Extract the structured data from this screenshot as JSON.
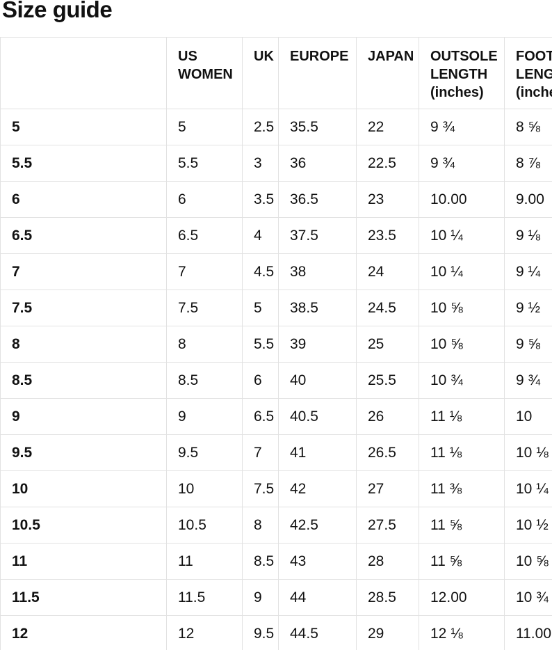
{
  "page": {
    "title": "Size guide"
  },
  "colors": {
    "text": "#111111",
    "border": "#e2e2e2",
    "background": "#ffffff"
  },
  "table": {
    "columns": [
      {
        "key": "size",
        "label": ""
      },
      {
        "key": "us_women",
        "label": "US WOMEN"
      },
      {
        "key": "uk",
        "label": "UK"
      },
      {
        "key": "europe",
        "label": "EUROPE"
      },
      {
        "key": "japan",
        "label": "JAPAN"
      },
      {
        "key": "outsole",
        "label": "OUTSOLE LENGTH (inches)"
      },
      {
        "key": "foot",
        "label": "FOOT LENGTH (inches)"
      }
    ],
    "rows": [
      {
        "size": "5",
        "us_women": "5",
        "uk": "2.5",
        "europe": "35.5",
        "japan": "22",
        "outsole": "9 ¾",
        "foot": "8 ⅝"
      },
      {
        "size": "5.5",
        "us_women": "5.5",
        "uk": "3",
        "europe": "36",
        "japan": "22.5",
        "outsole": "9 ¾",
        "foot": "8 ⅞"
      },
      {
        "size": "6",
        "us_women": "6",
        "uk": "3.5",
        "europe": "36.5",
        "japan": "23",
        "outsole": "10.00",
        "foot": "9.00"
      },
      {
        "size": "6.5",
        "us_women": "6.5",
        "uk": "4",
        "europe": "37.5",
        "japan": "23.5",
        "outsole": "10 ¼",
        "foot": "9 ⅛"
      },
      {
        "size": "7",
        "us_women": "7",
        "uk": "4.5",
        "europe": "38",
        "japan": "24",
        "outsole": "10 ¼",
        "foot": "9 ¼"
      },
      {
        "size": "7.5",
        "us_women": "7.5",
        "uk": "5",
        "europe": "38.5",
        "japan": "24.5",
        "outsole": "10 ⅝",
        "foot": "9 ½"
      },
      {
        "size": "8",
        "us_women": "8",
        "uk": "5.5",
        "europe": "39",
        "japan": "25",
        "outsole": "10 ⅝",
        "foot": "9 ⅝"
      },
      {
        "size": "8.5",
        "us_women": "8.5",
        "uk": "6",
        "europe": "40",
        "japan": "25.5",
        "outsole": "10 ¾",
        "foot": "9 ¾"
      },
      {
        "size": "9",
        "us_women": "9",
        "uk": "6.5",
        "europe": "40.5",
        "japan": "26",
        "outsole": "11 ⅛",
        "foot": "10"
      },
      {
        "size": "9.5",
        "us_women": "9.5",
        "uk": "7",
        "europe": "41",
        "japan": "26.5",
        "outsole": "11 ⅛",
        "foot": "10 ⅛"
      },
      {
        "size": "10",
        "us_women": "10",
        "uk": "7.5",
        "europe": "42",
        "japan": "27",
        "outsole": "11 ⅜",
        "foot": "10 ¼"
      },
      {
        "size": "10.5",
        "us_women": "10.5",
        "uk": "8",
        "europe": "42.5",
        "japan": "27.5",
        "outsole": "11 ⅝",
        "foot": "10 ½"
      },
      {
        "size": "11",
        "us_women": "11",
        "uk": "8.5",
        "europe": "43",
        "japan": "28",
        "outsole": "11 ⅝",
        "foot": "10 ⅝"
      },
      {
        "size": "11.5",
        "us_women": "11.5",
        "uk": "9",
        "europe": "44",
        "japan": "28.5",
        "outsole": "12.00",
        "foot": "10 ¾"
      },
      {
        "size": "12",
        "us_women": "12",
        "uk": "9.5",
        "europe": "44.5",
        "japan": "29",
        "outsole": "12 ⅛",
        "foot": "11.00"
      }
    ]
  }
}
